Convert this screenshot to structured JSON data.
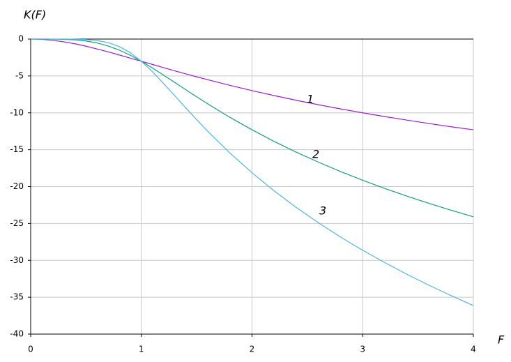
{
  "chart_data": {
    "type": "line",
    "y_label": "K(F)",
    "x_label": "F",
    "x": [
      0,
      0.1,
      0.2,
      0.3,
      0.4,
      0.5,
      0.6,
      0.7,
      0.8,
      0.9,
      1.0,
      1.1,
      1.2,
      1.3,
      1.4,
      1.5,
      1.6,
      1.8,
      2.0,
      2.2,
      2.4,
      2.6,
      2.8,
      3.0,
      3.2,
      3.4,
      3.6,
      3.8,
      4.0
    ],
    "series": [
      {
        "name": "1",
        "color": "#9b1fd0",
        "values": [
          0,
          -0.04,
          -0.17,
          -0.37,
          -0.64,
          -0.97,
          -1.34,
          -1.73,
          -2.15,
          -2.58,
          -3.01,
          -3.44,
          -3.87,
          -4.3,
          -4.71,
          -5.12,
          -5.51,
          -6.27,
          -6.99,
          -7.66,
          -8.3,
          -8.9,
          -9.47,
          -10.0,
          -10.51,
          -10.99,
          -11.45,
          -11.89,
          -12.3
        ]
      },
      {
        "name": "2",
        "color": "#12a078",
        "values": [
          0,
          0,
          -0.01,
          -0.04,
          -0.11,
          -0.26,
          -0.53,
          -0.94,
          -1.49,
          -2.19,
          -3.01,
          -3.92,
          -4.88,
          -5.86,
          -6.85,
          -7.83,
          -8.78,
          -10.61,
          -12.3,
          -13.88,
          -15.34,
          -16.69,
          -17.96,
          -19.14,
          -20.25,
          -21.29,
          -22.28,
          -23.21,
          -24.1
        ]
      },
      {
        "name": "3",
        "color": "#4cb6e6",
        "values": [
          0,
          0,
          0,
          0,
          -0.02,
          -0.07,
          -0.2,
          -0.48,
          -1.01,
          -1.85,
          -3.01,
          -4.43,
          -6.01,
          -7.65,
          -9.31,
          -10.93,
          -12.5,
          -15.44,
          -18.13,
          -20.58,
          -22.84,
          -24.91,
          -26.84,
          -28.63,
          -30.31,
          -31.89,
          -33.38,
          -34.79,
          -36.13
        ]
      }
    ],
    "xlim": [
      0,
      4
    ],
    "xticks": [
      0,
      1,
      2,
      3,
      4
    ],
    "ylim": [
      -40,
      0
    ],
    "yticks": [
      0,
      -5,
      -10,
      -15,
      -20,
      -25,
      -30,
      -35,
      -40
    ],
    "grid": true
  }
}
